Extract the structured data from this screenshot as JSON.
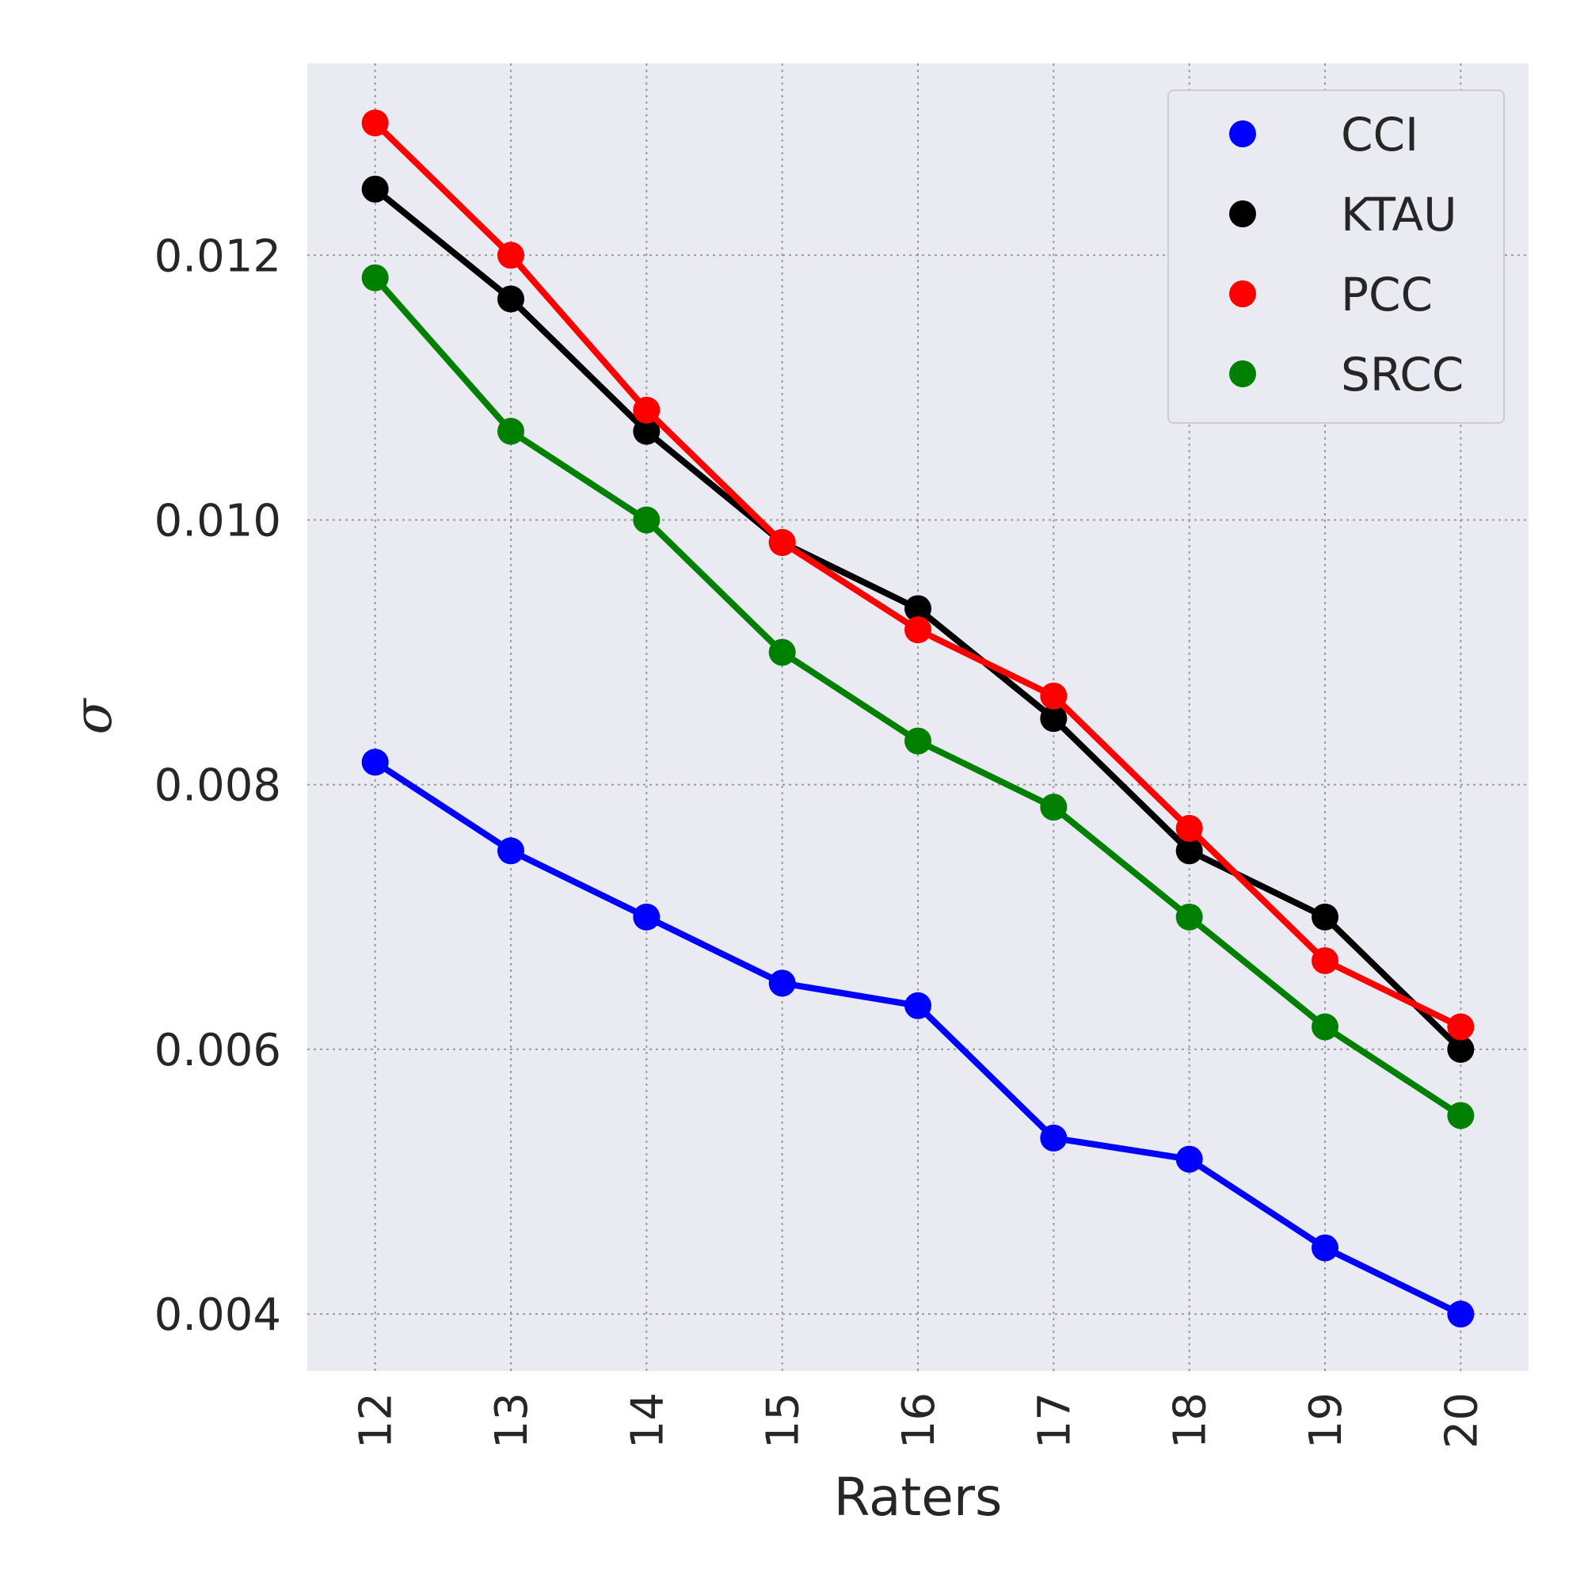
{
  "chart_data": {
    "type": "line",
    "title": "",
    "xlabel": "Raters",
    "ylabel": "σ",
    "x": [
      12,
      13,
      14,
      15,
      16,
      17,
      18,
      19,
      20
    ],
    "y_ticks": [
      "0.004",
      "0.006",
      "0.008",
      "0.010",
      "0.012"
    ],
    "y_tick_values": [
      0.004,
      0.006,
      0.008,
      0.01,
      0.012
    ],
    "ylim": [
      0.00357,
      0.01345
    ],
    "xlim": [
      11.5,
      20.5
    ],
    "grid": true,
    "legend_position": "top-right",
    "series": [
      {
        "name": "CCI",
        "color": "#0000ff",
        "values": [
          0.00817,
          0.0075,
          0.007,
          0.0065,
          0.00633,
          0.00533,
          0.00517,
          0.0045,
          0.004
        ]
      },
      {
        "name": "KTAU",
        "color": "#000000",
        "values": [
          0.0125,
          0.01167,
          0.01067,
          0.00983,
          0.00933,
          0.0085,
          0.0075,
          0.007,
          0.006
        ]
      },
      {
        "name": "PCC",
        "color": "#ff0000",
        "values": [
          0.013,
          0.012,
          0.01083,
          0.00983,
          0.00917,
          0.00867,
          0.00767,
          0.00667,
          0.00617
        ]
      },
      {
        "name": "SRCC",
        "color": "#008000",
        "values": [
          0.01183,
          0.01067,
          0.01,
          0.009,
          0.00833,
          0.00783,
          0.007,
          0.00617,
          0.0055
        ]
      }
    ]
  }
}
